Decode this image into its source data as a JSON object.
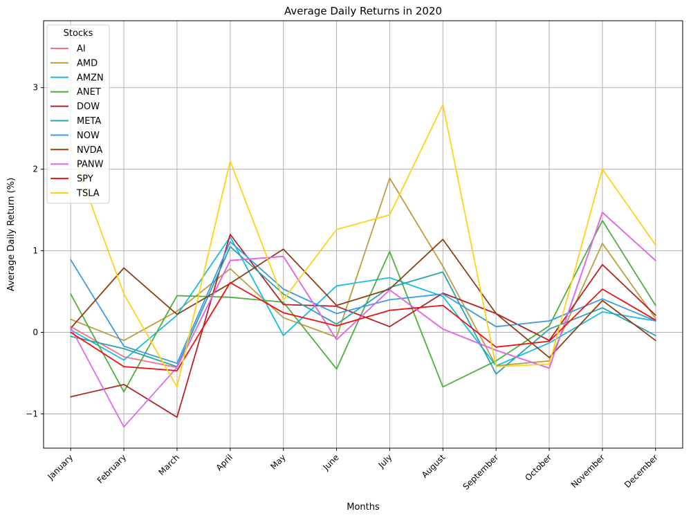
{
  "chart_data": {
    "type": "line",
    "title": "Average Daily Returns in 2020",
    "xlabel": "Months",
    "ylabel": "Average Daily Return (%)",
    "ylim": [
      -1.42,
      3.82
    ],
    "yticks": [
      -1,
      0,
      1,
      2,
      3
    ],
    "yticklabels": [
      "−1",
      "0",
      "1",
      "2",
      "3"
    ],
    "grid": true,
    "legend": {
      "title": "Stocks",
      "placement": "top-left"
    },
    "categories": [
      "January",
      "February",
      "March",
      "April",
      "May",
      "June",
      "July",
      "August",
      "September",
      "October",
      "November",
      "December"
    ],
    "series": [
      {
        "name": "AI",
        "color": "#ff6b7f",
        "values": [
          0.07,
          -0.3,
          -0.43,
          0.88,
          0.93,
          -0.09,
          0.52,
          0.04,
          -0.22,
          -0.44,
          1.47,
          0.88
        ]
      },
      {
        "name": "AMD",
        "color": "#bf9b3f",
        "values": [
          0.16,
          -0.1,
          0.26,
          0.78,
          0.18,
          -0.06,
          1.89,
          0.81,
          -0.41,
          -0.35,
          1.09,
          0.17
        ]
      },
      {
        "name": "AMZN",
        "color": "#14bce6",
        "values": [
          0.03,
          -0.34,
          0.21,
          1.17,
          -0.04,
          0.57,
          0.67,
          0.44,
          -0.41,
          -0.13,
          0.25,
          0.14
        ]
      },
      {
        "name": "ANET",
        "color": "#4caf3a",
        "values": [
          0.47,
          -0.73,
          0.45,
          0.43,
          0.37,
          -0.45,
          0.99,
          -0.67,
          -0.35,
          0.08,
          1.37,
          0.33
        ]
      },
      {
        "name": "DOW",
        "color": "#b22222",
        "values": [
          -0.79,
          -0.64,
          -1.04,
          1.2,
          0.34,
          0.32,
          0.07,
          0.48,
          0.23,
          -0.1,
          0.83,
          0.21
        ]
      },
      {
        "name": "META",
        "color": "#2aa3a8",
        "values": [
          -0.05,
          -0.2,
          -0.42,
          1.05,
          0.47,
          0.1,
          0.55,
          0.74,
          -0.51,
          0.04,
          0.3,
          -0.04
        ]
      },
      {
        "name": "NOW",
        "color": "#3b9ae6",
        "values": [
          0.89,
          -0.17,
          -0.38,
          1.11,
          0.53,
          0.23,
          0.4,
          0.47,
          0.07,
          0.14,
          0.41,
          0.14
        ]
      },
      {
        "name": "NVDA",
        "color": "#8b3f12",
        "values": [
          0.05,
          0.79,
          0.22,
          0.6,
          1.02,
          0.33,
          0.53,
          1.14,
          0.23,
          -0.31,
          0.39,
          -0.1
        ]
      },
      {
        "name": "PANW",
        "color": "#e066ee",
        "values": [
          0.06,
          -1.16,
          -0.43,
          0.88,
          0.93,
          -0.09,
          0.52,
          0.04,
          -0.22,
          -0.44,
          1.47,
          0.88
        ]
      },
      {
        "name": "SPY",
        "color": "#ee1111",
        "values": [
          0.0,
          -0.42,
          -0.47,
          0.61,
          0.24,
          0.08,
          0.27,
          0.33,
          -0.18,
          -0.11,
          0.53,
          0.15
        ]
      },
      {
        "name": "TSLA",
        "color": "#ffd21a",
        "values": [
          2.26,
          0.47,
          -0.67,
          2.1,
          0.4,
          1.26,
          1.44,
          2.79,
          -0.42,
          -0.39,
          2.0,
          1.07
        ]
      }
    ]
  }
}
